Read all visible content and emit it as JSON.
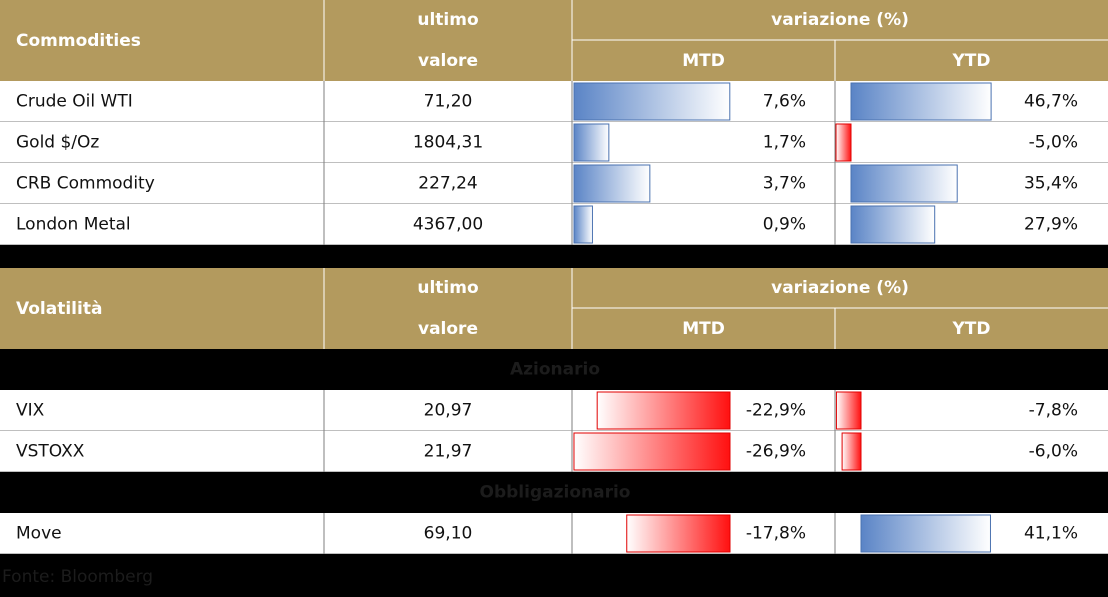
{
  "tables": [
    {
      "header": {
        "title": "Commodities",
        "value_top": "ultimo",
        "value_bottom": "valore",
        "change": "variazione (%)",
        "mtd": "MTD",
        "ytd": "YTD"
      },
      "groups": [
        {
          "rows": [
            {
              "name": "Crude Oil WTI",
              "last": "71,20",
              "mtd": {
                "value": 7.6,
                "label": "7,6%"
              },
              "ytd": {
                "value": 46.7,
                "label": "46,7%"
              }
            },
            {
              "name": "Gold $/Oz",
              "last": "1804,31",
              "mtd": {
                "value": 1.7,
                "label": "1,7%"
              },
              "ytd": {
                "value": -5.0,
                "label": "-5,0%"
              }
            },
            {
              "name": "CRB Commodity",
              "last": "227,24",
              "mtd": {
                "value": 3.7,
                "label": "3,7%"
              },
              "ytd": {
                "value": 35.4,
                "label": "35,4%"
              }
            },
            {
              "name": "London Metal",
              "last": "4367,00",
              "mtd": {
                "value": 0.9,
                "label": "0,9%"
              },
              "ytd": {
                "value": 27.9,
                "label": "27,9%"
              }
            }
          ]
        }
      ]
    },
    {
      "header": {
        "title": "Volatilità",
        "value_top": "ultimo",
        "value_bottom": "valore",
        "change": "variazione (%)",
        "mtd": "MTD",
        "ytd": "YTD"
      },
      "groups": [
        {
          "label": "Azionario",
          "rows": [
            {
              "name": "VIX",
              "last": "20,97",
              "mtd": {
                "value": -22.9,
                "label": "-22,9%"
              },
              "ytd": {
                "value": -7.8,
                "label": "-7,8%"
              }
            },
            {
              "name": "VSTOXX",
              "last": "21,97",
              "mtd": {
                "value": -26.9,
                "label": "-26,9%"
              },
              "ytd": {
                "value": -6.0,
                "label": "-6,0%"
              }
            }
          ]
        },
        {
          "label": "Obbligazionario",
          "rows": [
            {
              "name": "Move",
              "last": "69,10",
              "mtd": {
                "value": -17.8,
                "label": "-17,8%"
              },
              "ytd": {
                "value": 41.1,
                "label": "41,1%"
              }
            }
          ]
        }
      ]
    }
  ],
  "footer": "Fonte: Bloomberg"
}
